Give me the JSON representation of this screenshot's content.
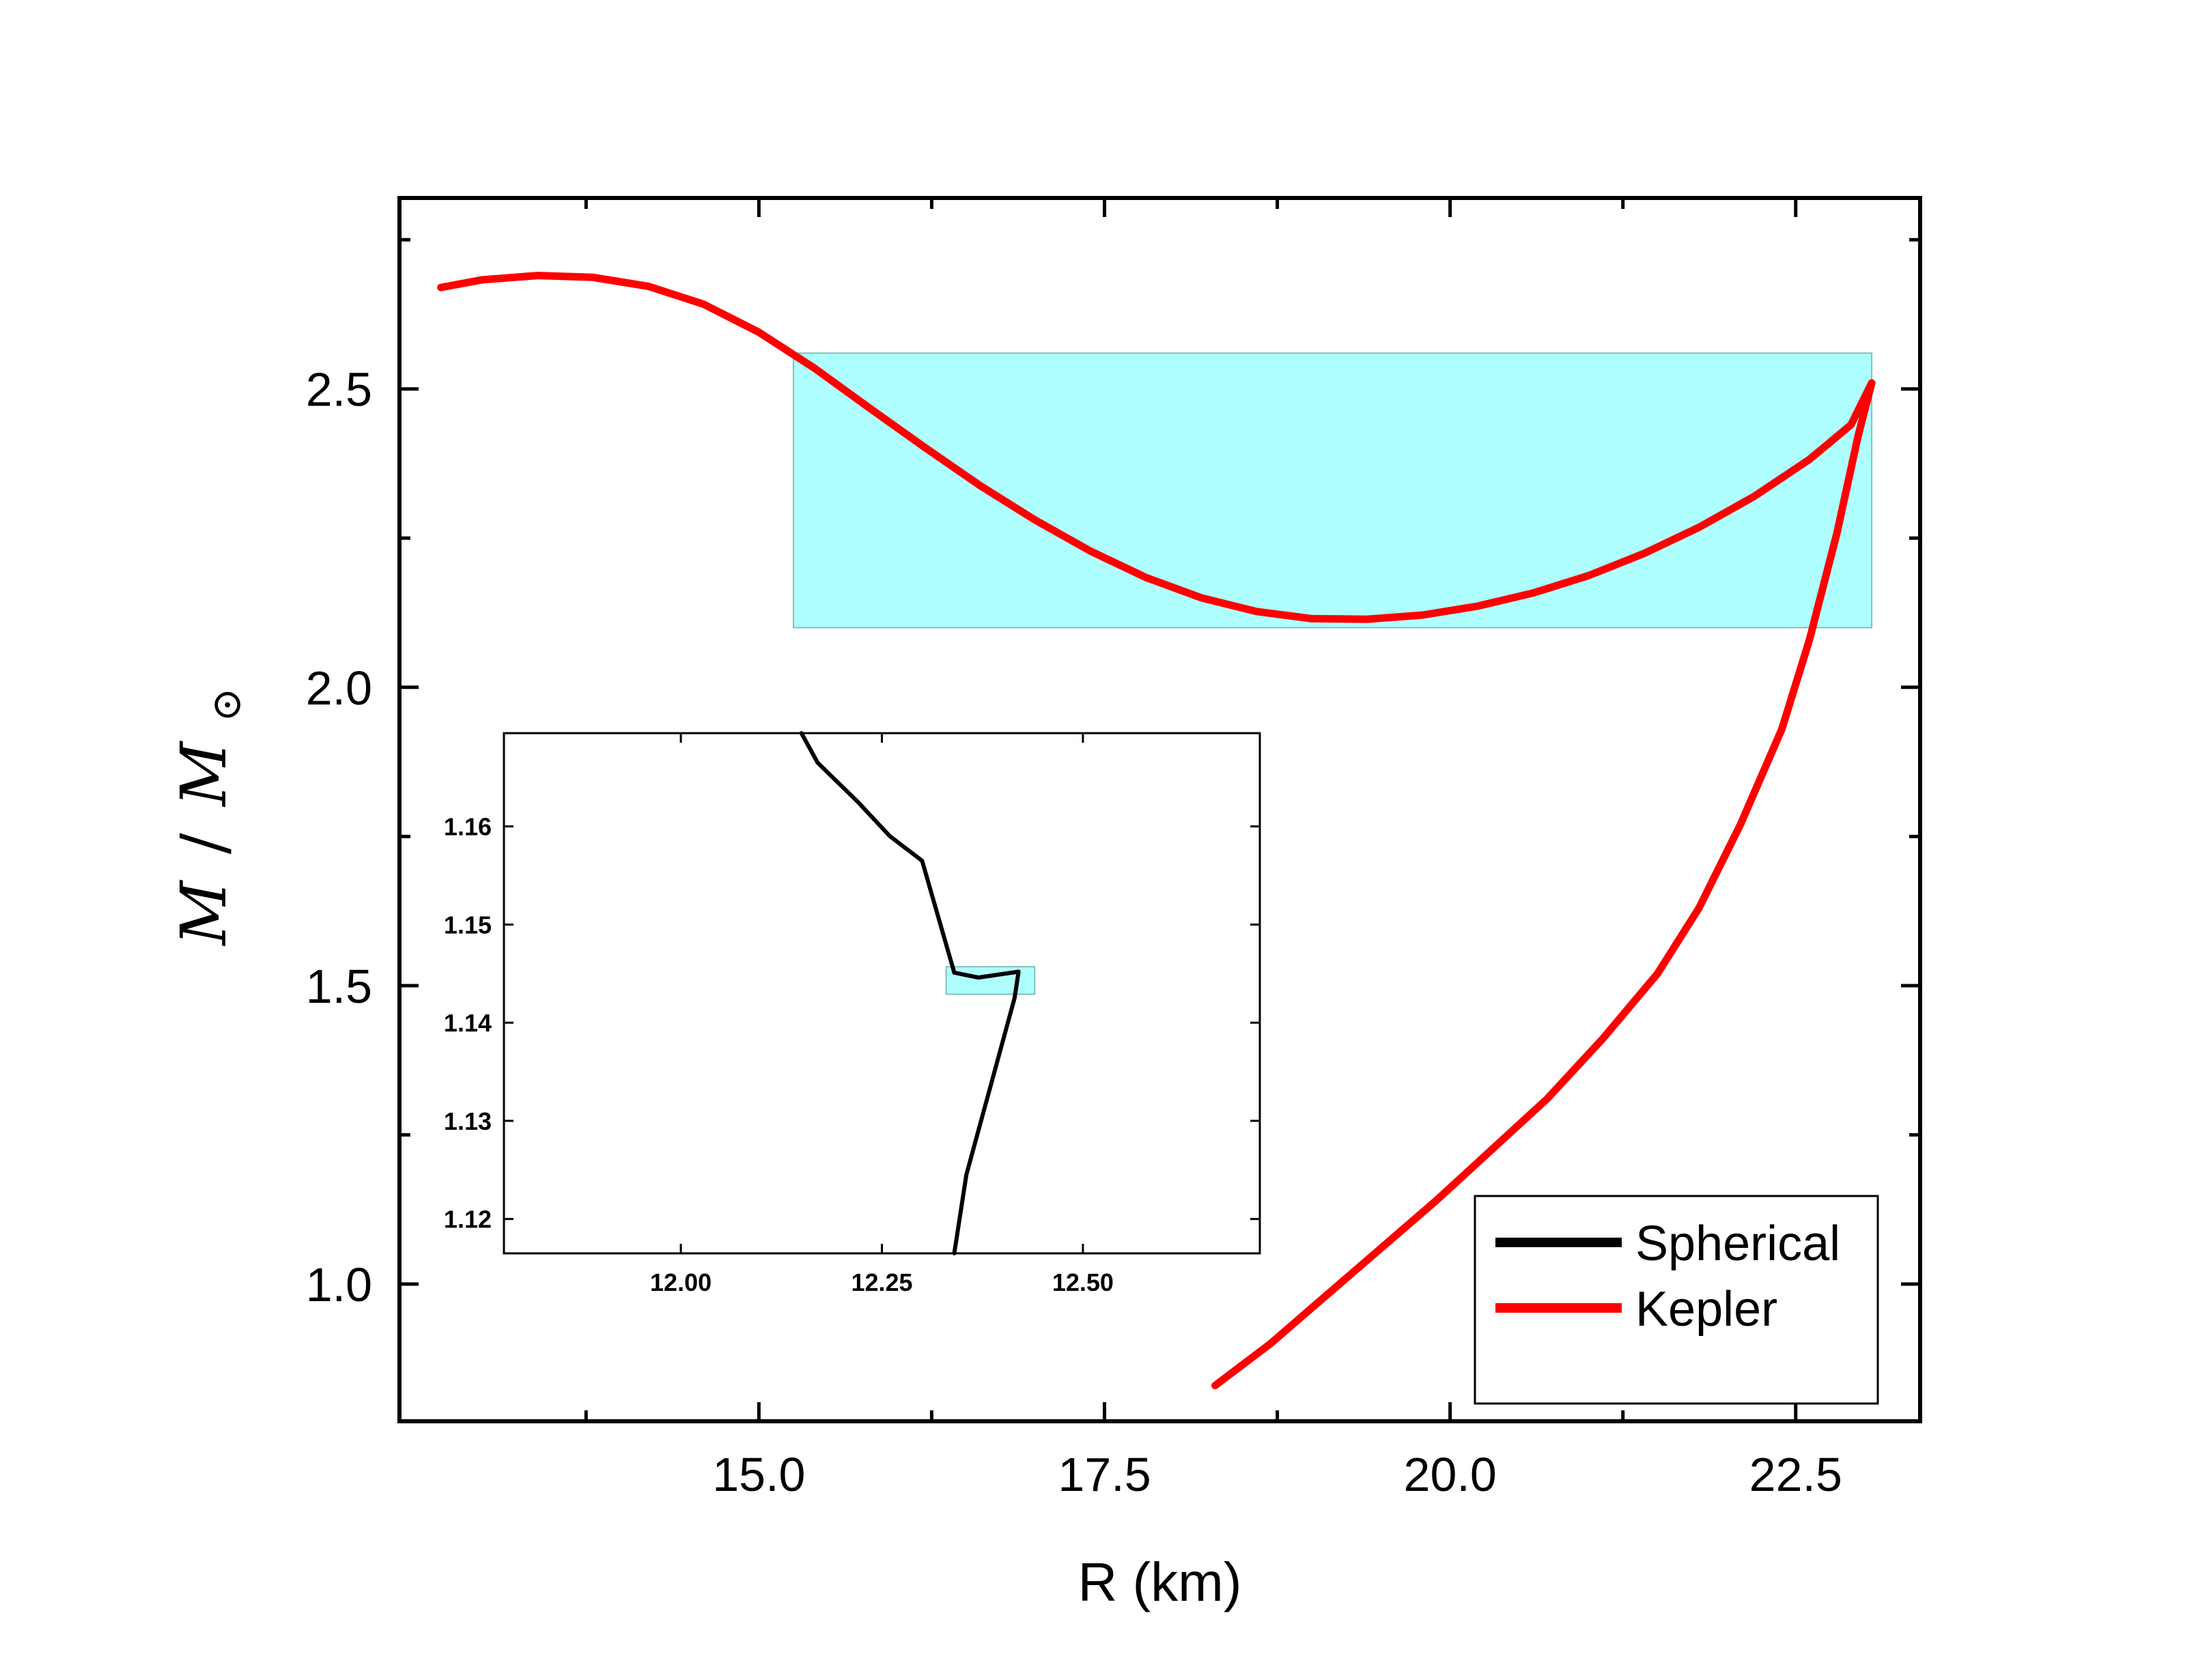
{
  "chart_data": [
    {
      "type": "line",
      "name": "main",
      "xlabel": "R (km)",
      "ylabel": "M / M_sun",
      "ylabel_parts": {
        "m": "M",
        "slash": "/",
        "msun": "M",
        "sun_symbol": "⊙"
      },
      "xlim": [
        12.4,
        23.4
      ],
      "ylim": [
        0.77,
        2.82
      ],
      "xticks": [
        15.0,
        17.5,
        20.0,
        22.5
      ],
      "xtick_labels": [
        "15.0",
        "17.5",
        "20.0",
        "22.5"
      ],
      "xminor": [
        13.75,
        16.25,
        18.75,
        21.25
      ],
      "yticks": [
        1.0,
        1.5,
        2.0,
        2.5
      ],
      "ytick_labels": [
        "1.0",
        "1.5",
        "2.0",
        "2.5"
      ],
      "yminor": [
        1.25,
        1.75,
        2.25,
        2.75
      ],
      "highlight_band": {
        "x": [
          15.25,
          23.05
        ],
        "y": [
          2.1,
          2.56
        ],
        "color": "#b0ffff"
      },
      "series": [
        {
          "name": "Kepler",
          "color": "#ff0000",
          "x": [
            12.7,
            13.0,
            13.4,
            13.8,
            14.2,
            14.6,
            15.0,
            15.4,
            15.8,
            16.2,
            16.6,
            17.0,
            17.4,
            17.8,
            18.2,
            18.6,
            19.0,
            19.4,
            19.8,
            20.2,
            20.6,
            21.0,
            21.4,
            21.8,
            22.2,
            22.6,
            22.9,
            23.05,
            22.95,
            22.8,
            22.6,
            22.4,
            22.1,
            21.8,
            21.5,
            21.1,
            20.7,
            20.3,
            19.9,
            19.5,
            19.1,
            18.7,
            18.3
          ],
          "y": [
            2.67,
            2.683,
            2.69,
            2.687,
            2.672,
            2.642,
            2.595,
            2.535,
            2.468,
            2.402,
            2.338,
            2.28,
            2.228,
            2.184,
            2.15,
            2.127,
            2.115,
            2.114,
            2.121,
            2.136,
            2.158,
            2.187,
            2.224,
            2.268,
            2.32,
            2.382,
            2.44,
            2.51,
            2.42,
            2.26,
            2.08,
            1.93,
            1.77,
            1.63,
            1.52,
            1.41,
            1.31,
            1.225,
            1.14,
            1.06,
            0.98,
            0.9,
            0.83
          ]
        }
      ],
      "legend": {
        "position": "bottom-right",
        "entries": [
          {
            "label": "Spherical",
            "color": "#000000"
          },
          {
            "label": "Kepler",
            "color": "#ff0000"
          }
        ]
      }
    },
    {
      "type": "line",
      "name": "inset",
      "xlim": [
        11.78,
        12.72
      ],
      "ylim": [
        1.1165,
        1.1695
      ],
      "xticks": [
        12.0,
        12.25,
        12.5
      ],
      "xtick_labels": [
        "12.00",
        "12.25",
        "12.50"
      ],
      "yticks": [
        1.12,
        1.13,
        1.14,
        1.15,
        1.16
      ],
      "ytick_labels": [
        "1.12",
        "1.13",
        "1.14",
        "1.15",
        "1.16"
      ],
      "highlight_band": {
        "x": [
          12.33,
          12.44
        ],
        "y": [
          1.1429,
          1.1457
        ],
        "color": "#b0ffff"
      },
      "series": [
        {
          "name": "Spherical",
          "color": "#000000",
          "x": [
            12.15,
            12.17,
            12.22,
            12.26,
            12.3,
            12.34,
            12.37,
            12.42,
            12.415,
            12.4,
            12.385,
            12.37,
            12.355,
            12.34
          ],
          "y": [
            1.1695,
            1.1665,
            1.1625,
            1.159,
            1.1565,
            1.1451,
            1.1446,
            1.1452,
            1.1425,
            1.138,
            1.1335,
            1.129,
            1.1245,
            1.1165
          ]
        }
      ]
    }
  ]
}
